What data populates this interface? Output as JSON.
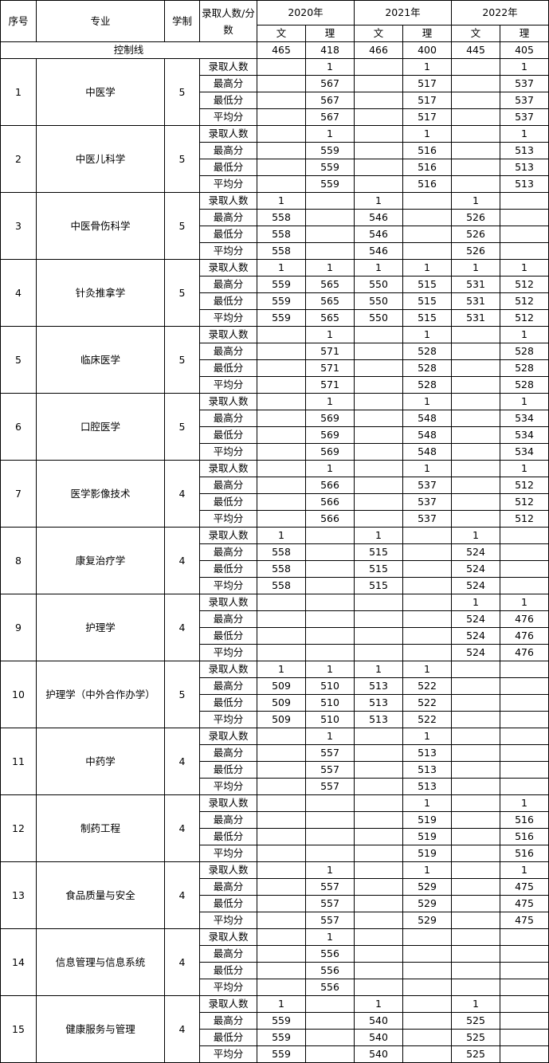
{
  "header": {
    "seq": "序号",
    "major": "专业",
    "years": "学制",
    "metric": "录取人数/分数",
    "year_labels": [
      "2020年",
      "2021年",
      "2022年"
    ],
    "sub": [
      "文",
      "理",
      "文",
      "理",
      "文",
      "理"
    ]
  },
  "control": {
    "label": "控制线",
    "values": [
      "465",
      "418",
      "466",
      "400",
      "445",
      "405"
    ]
  },
  "metric_labels": [
    "录取人数",
    "最高分",
    "最低分",
    "平均分"
  ],
  "majors": [
    {
      "seq": "1",
      "name": "中医学",
      "years": "5",
      "rows": [
        [
          "",
          "1",
          "",
          "1",
          "",
          "1"
        ],
        [
          "",
          "567",
          "",
          "517",
          "",
          "537"
        ],
        [
          "",
          "567",
          "",
          "517",
          "",
          "537"
        ],
        [
          "",
          "567",
          "",
          "517",
          "",
          "537"
        ]
      ]
    },
    {
      "seq": "2",
      "name": "中医儿科学",
      "years": "5",
      "rows": [
        [
          "",
          "1",
          "",
          "1",
          "",
          "1"
        ],
        [
          "",
          "559",
          "",
          "516",
          "",
          "513"
        ],
        [
          "",
          "559",
          "",
          "516",
          "",
          "513"
        ],
        [
          "",
          "559",
          "",
          "516",
          "",
          "513"
        ]
      ]
    },
    {
      "seq": "3",
      "name": "中医骨伤科学",
      "years": "5",
      "rows": [
        [
          "1",
          "",
          "1",
          "",
          "1",
          ""
        ],
        [
          "558",
          "",
          "546",
          "",
          "526",
          ""
        ],
        [
          "558",
          "",
          "546",
          "",
          "526",
          ""
        ],
        [
          "558",
          "",
          "546",
          "",
          "526",
          ""
        ]
      ]
    },
    {
      "seq": "4",
      "name": "针灸推拿学",
      "years": "5",
      "rows": [
        [
          "1",
          "1",
          "1",
          "1",
          "1",
          "1"
        ],
        [
          "559",
          "565",
          "550",
          "515",
          "531",
          "512"
        ],
        [
          "559",
          "565",
          "550",
          "515",
          "531",
          "512"
        ],
        [
          "559",
          "565",
          "550",
          "515",
          "531",
          "512"
        ]
      ]
    },
    {
      "seq": "5",
      "name": "临床医学",
      "years": "5",
      "rows": [
        [
          "",
          "1",
          "",
          "1",
          "",
          "1"
        ],
        [
          "",
          "571",
          "",
          "528",
          "",
          "528"
        ],
        [
          "",
          "571",
          "",
          "528",
          "",
          "528"
        ],
        [
          "",
          "571",
          "",
          "528",
          "",
          "528"
        ]
      ]
    },
    {
      "seq": "6",
      "name": "口腔医学",
      "years": "5",
      "rows": [
        [
          "",
          "1",
          "",
          "1",
          "",
          "1"
        ],
        [
          "",
          "569",
          "",
          "548",
          "",
          "534"
        ],
        [
          "",
          "569",
          "",
          "548",
          "",
          "534"
        ],
        [
          "",
          "569",
          "",
          "548",
          "",
          "534"
        ]
      ]
    },
    {
      "seq": "7",
      "name": "医学影像技术",
      "years": "4",
      "rows": [
        [
          "",
          "1",
          "",
          "1",
          "",
          "1"
        ],
        [
          "",
          "566",
          "",
          "537",
          "",
          "512"
        ],
        [
          "",
          "566",
          "",
          "537",
          "",
          "512"
        ],
        [
          "",
          "566",
          "",
          "537",
          "",
          "512"
        ]
      ]
    },
    {
      "seq": "8",
      "name": "康复治疗学",
      "years": "4",
      "rows": [
        [
          "1",
          "",
          "1",
          "",
          "1",
          ""
        ],
        [
          "558",
          "",
          "515",
          "",
          "524",
          ""
        ],
        [
          "558",
          "",
          "515",
          "",
          "524",
          ""
        ],
        [
          "558",
          "",
          "515",
          "",
          "524",
          ""
        ]
      ]
    },
    {
      "seq": "9",
      "name": "护理学",
      "years": "4",
      "rows": [
        [
          "",
          "",
          "",
          "",
          "1",
          "1"
        ],
        [
          "",
          "",
          "",
          "",
          "524",
          "476"
        ],
        [
          "",
          "",
          "",
          "",
          "524",
          "476"
        ],
        [
          "",
          "",
          "",
          "",
          "524",
          "476"
        ]
      ]
    },
    {
      "seq": "10",
      "name": "护理学（中外合作办学）",
      "years": "5",
      "rows": [
        [
          "1",
          "1",
          "1",
          "1",
          "",
          ""
        ],
        [
          "509",
          "510",
          "513",
          "522",
          "",
          ""
        ],
        [
          "509",
          "510",
          "513",
          "522",
          "",
          ""
        ],
        [
          "509",
          "510",
          "513",
          "522",
          "",
          ""
        ]
      ]
    },
    {
      "seq": "11",
      "name": "中药学",
      "years": "4",
      "rows": [
        [
          "",
          "1",
          "",
          "1",
          "",
          ""
        ],
        [
          "",
          "557",
          "",
          "513",
          "",
          ""
        ],
        [
          "",
          "557",
          "",
          "513",
          "",
          ""
        ],
        [
          "",
          "557",
          "",
          "513",
          "",
          ""
        ]
      ]
    },
    {
      "seq": "12",
      "name": "制药工程",
      "years": "4",
      "rows": [
        [
          "",
          "",
          "",
          "1",
          "",
          "1"
        ],
        [
          "",
          "",
          "",
          "519",
          "",
          "516"
        ],
        [
          "",
          "",
          "",
          "519",
          "",
          "516"
        ],
        [
          "",
          "",
          "",
          "519",
          "",
          "516"
        ]
      ]
    },
    {
      "seq": "13",
      "name": "食品质量与安全",
      "years": "4",
      "rows": [
        [
          "",
          "1",
          "",
          "1",
          "",
          "1"
        ],
        [
          "",
          "557",
          "",
          "529",
          "",
          "475"
        ],
        [
          "",
          "557",
          "",
          "529",
          "",
          "475"
        ],
        [
          "",
          "557",
          "",
          "529",
          "",
          "475"
        ]
      ]
    },
    {
      "seq": "14",
      "name": "信息管理与信息系统",
      "years": "4",
      "rows": [
        [
          "",
          "1",
          "",
          "",
          "",
          ""
        ],
        [
          "",
          "556",
          "",
          "",
          "",
          ""
        ],
        [
          "",
          "556",
          "",
          "",
          "",
          ""
        ],
        [
          "",
          "556",
          "",
          "",
          "",
          ""
        ]
      ]
    },
    {
      "seq": "15",
      "name": "健康服务与管理",
      "years": "4",
      "rows": [
        [
          "1",
          "",
          "1",
          "",
          "1",
          ""
        ],
        [
          "559",
          "",
          "540",
          "",
          "525",
          ""
        ],
        [
          "559",
          "",
          "540",
          "",
          "525",
          ""
        ],
        [
          "559",
          "",
          "540",
          "",
          "525",
          ""
        ]
      ]
    }
  ]
}
